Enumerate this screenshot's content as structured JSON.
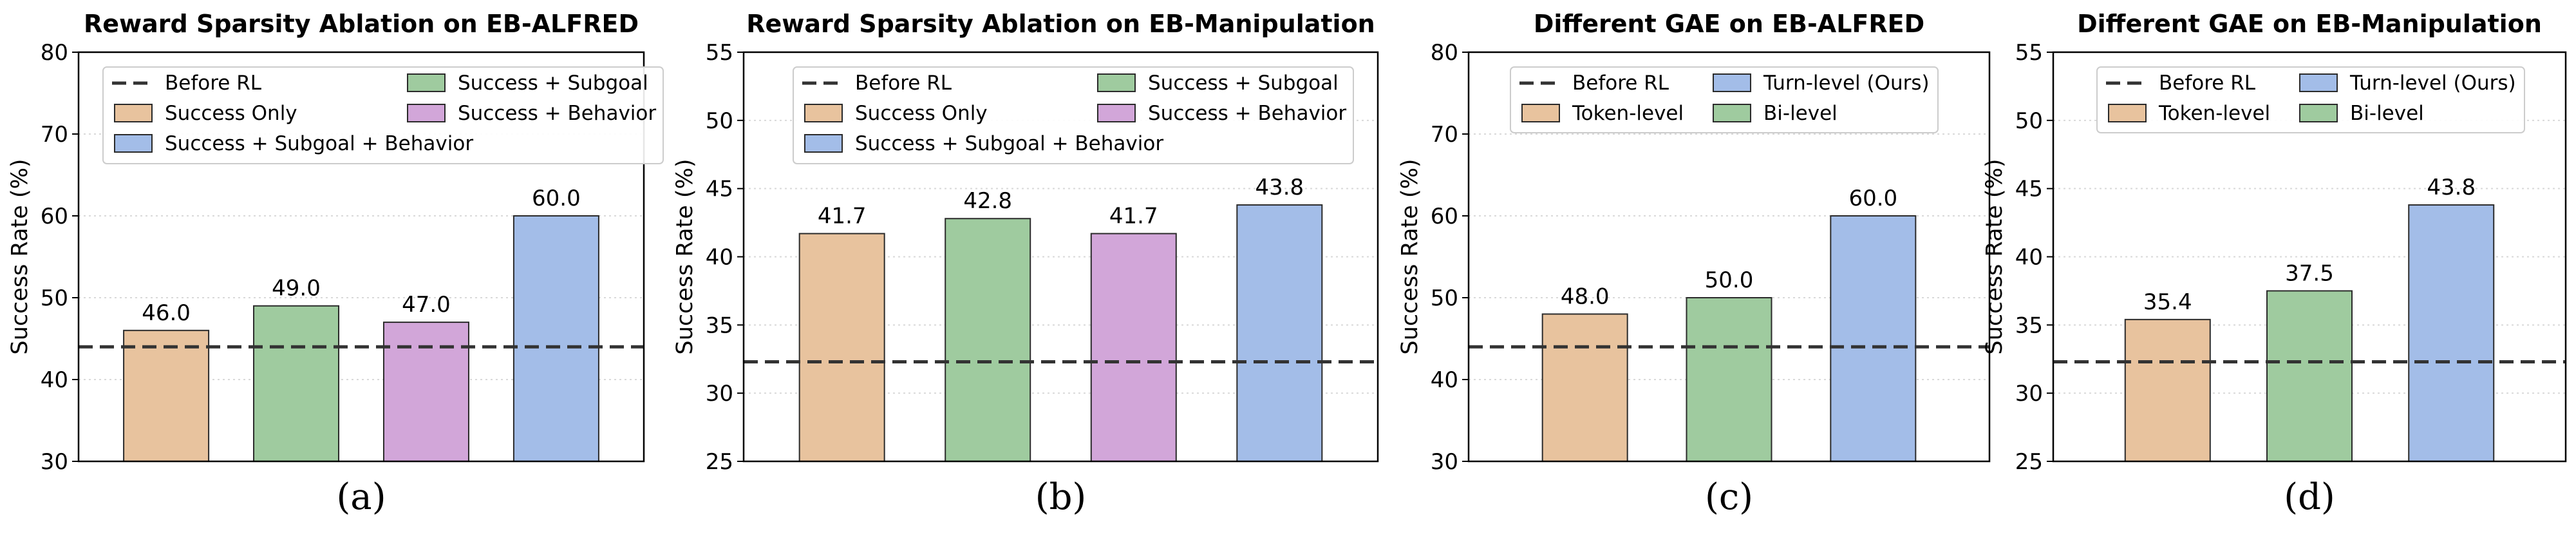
{
  "figure": {
    "colors": {
      "success_only": "#e8c39e",
      "success_subgoal": "#9fcb9f",
      "success_behavior": "#d2a6d9",
      "all_three": "#a3bde8",
      "token_level": "#e8c39e",
      "bi_level": "#9fcb9f",
      "turn_level": "#a3bde8",
      "baseline": "#333333",
      "bar_edge": "#2b2b2b",
      "grid": "#d9d9d9"
    }
  },
  "chart_data": [
    {
      "type": "bar",
      "title": "Reward Sparsity Ablation on EB-ALFRED",
      "ylabel": "Success Rate (%)",
      "caption": "(a)",
      "ylim": [
        30,
        80
      ],
      "yticks": [
        30,
        40,
        50,
        60,
        70,
        80
      ],
      "grid": "horizontal dotted",
      "legend_position": "top",
      "legend_columns": 2,
      "categories": [
        "Success Only",
        "Success + Subgoal",
        "Success + Behavior",
        "Success + Subgoal + Behavior"
      ],
      "values": [
        46.0,
        49.0,
        47.0,
        60.0
      ],
      "value_labels": [
        "46.0",
        "49.0",
        "47.0",
        "60.0"
      ],
      "colors": [
        "#e8c39e",
        "#9fcb9f",
        "#d2a6d9",
        "#a3bde8"
      ],
      "baseline": {
        "label": "Before RL",
        "value": 44.0
      },
      "legend": [
        {
          "label": "Before RL",
          "kind": "line",
          "color": "#333333"
        },
        {
          "label": "Success + Subgoal",
          "kind": "box",
          "color": "#9fcb9f"
        },
        {
          "label": "Success Only",
          "kind": "box",
          "color": "#e8c39e"
        },
        {
          "label": "Success + Behavior",
          "kind": "box",
          "color": "#d2a6d9"
        },
        {
          "label": "Success + Subgoal + Behavior",
          "kind": "box",
          "color": "#a3bde8"
        }
      ]
    },
    {
      "type": "bar",
      "title": "Reward Sparsity Ablation on EB-Manipulation",
      "ylabel": "Success Rate (%)",
      "caption": "(b)",
      "ylim": [
        25,
        55
      ],
      "yticks": [
        25,
        30,
        35,
        40,
        45,
        50,
        55
      ],
      "grid": "horizontal dotted",
      "legend_position": "top",
      "legend_columns": 2,
      "categories": [
        "Success Only",
        "Success + Subgoal",
        "Success + Behavior",
        "Success + Subgoal + Behavior"
      ],
      "values": [
        41.7,
        42.8,
        41.7,
        43.8
      ],
      "value_labels": [
        "41.7",
        "42.8",
        "41.7",
        "43.8"
      ],
      "colors": [
        "#e8c39e",
        "#9fcb9f",
        "#d2a6d9",
        "#a3bde8"
      ],
      "baseline": {
        "label": "Before RL",
        "value": 32.3
      },
      "legend": [
        {
          "label": "Before RL",
          "kind": "line",
          "color": "#333333"
        },
        {
          "label": "Success + Subgoal",
          "kind": "box",
          "color": "#9fcb9f"
        },
        {
          "label": "Success Only",
          "kind": "box",
          "color": "#e8c39e"
        },
        {
          "label": "Success + Behavior",
          "kind": "box",
          "color": "#d2a6d9"
        },
        {
          "label": "Success + Subgoal + Behavior",
          "kind": "box",
          "color": "#a3bde8"
        }
      ]
    },
    {
      "type": "bar",
      "title": "Different GAE on EB-ALFRED",
      "ylabel": "Success Rate (%)",
      "caption": "(c)",
      "ylim": [
        30,
        80
      ],
      "yticks": [
        30,
        40,
        50,
        60,
        70,
        80
      ],
      "grid": "horizontal dotted",
      "legend_position": "top",
      "legend_columns": 2,
      "categories": [
        "Token-level",
        "Bi-level",
        "Turn-level (Ours)"
      ],
      "values": [
        48.0,
        50.0,
        60.0
      ],
      "value_labels": [
        "48.0",
        "50.0",
        "60.0"
      ],
      "colors": [
        "#e8c39e",
        "#9fcb9f",
        "#a3bde8"
      ],
      "baseline": {
        "label": "Before RL",
        "value": 44.0
      },
      "legend": [
        {
          "label": "Before RL",
          "kind": "line",
          "color": "#333333"
        },
        {
          "label": "Turn-level (Ours)",
          "kind": "box",
          "color": "#a3bde8"
        },
        {
          "label": "Token-level",
          "kind": "box",
          "color": "#e8c39e"
        },
        {
          "label": "Bi-level",
          "kind": "box",
          "color": "#9fcb9f"
        }
      ]
    },
    {
      "type": "bar",
      "title": "Different GAE on EB-Manipulation",
      "ylabel": "Success Rate (%)",
      "caption": "(d)",
      "ylim": [
        25,
        55
      ],
      "yticks": [
        25,
        30,
        35,
        40,
        45,
        50,
        55
      ],
      "grid": "horizontal dotted",
      "legend_position": "top",
      "legend_columns": 2,
      "categories": [
        "Token-level",
        "Bi-level",
        "Turn-level (Ours)"
      ],
      "values": [
        35.4,
        37.5,
        43.8
      ],
      "value_labels": [
        "35.4",
        "37.5",
        "43.8"
      ],
      "colors": [
        "#e8c39e",
        "#9fcb9f",
        "#a3bde8"
      ],
      "baseline": {
        "label": "Before RL",
        "value": 32.3
      },
      "legend": [
        {
          "label": "Before RL",
          "kind": "line",
          "color": "#333333"
        },
        {
          "label": "Turn-level (Ours)",
          "kind": "box",
          "color": "#a3bde8"
        },
        {
          "label": "Token-level",
          "kind": "box",
          "color": "#e8c39e"
        },
        {
          "label": "Bi-level",
          "kind": "box",
          "color": "#9fcb9f"
        }
      ]
    }
  ]
}
